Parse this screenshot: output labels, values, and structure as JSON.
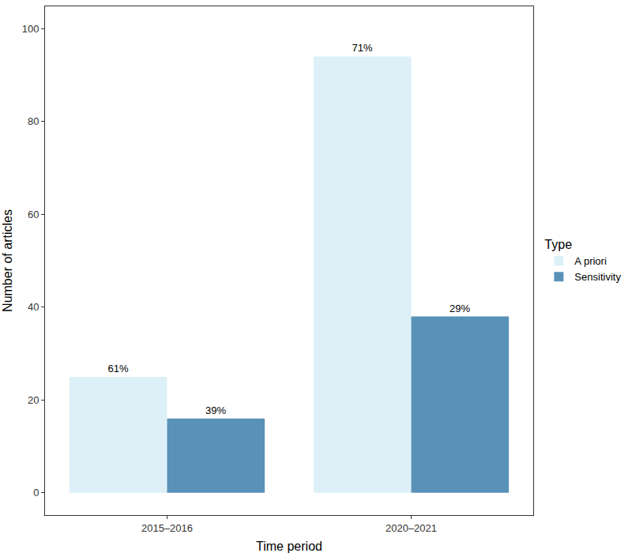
{
  "chart_data": {
    "type": "bar",
    "x_label": "Time period",
    "y_label": "Number of articles",
    "legend_title": "Type",
    "categories": [
      "2015–2016",
      "2020–2021"
    ],
    "series": [
      {
        "name": "A priori",
        "color": "#ddf0f8",
        "values": [
          25,
          94
        ],
        "share_labels": [
          "61%",
          "71%"
        ]
      },
      {
        "name": "Sensitivity",
        "color": "#5a91b8",
        "values": [
          16,
          38
        ],
        "share_labels": [
          "39%",
          "29%"
        ]
      }
    ],
    "ylim": [
      -4.8,
      104.8
    ],
    "yticks": [
      0,
      20,
      40,
      60,
      80,
      100
    ],
    "grid": false,
    "legend": "right"
  }
}
